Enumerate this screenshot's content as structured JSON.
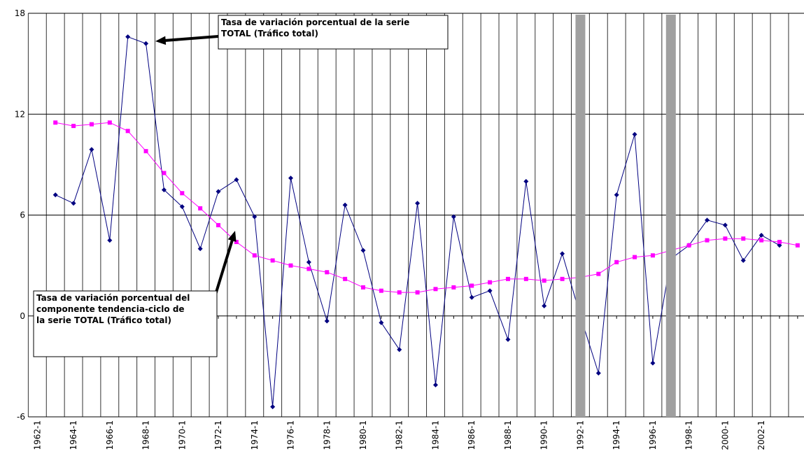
{
  "chart_data": {
    "type": "line",
    "categories": [
      "1962-1",
      null,
      "1964-1",
      null,
      "1966-1",
      null,
      "1968-1",
      null,
      "1970-1",
      null,
      "1972-1",
      null,
      "1974-1",
      null,
      "1976-1",
      null,
      "1978-1",
      null,
      "1980-1",
      null,
      "1982-1",
      null,
      "1984-1",
      null,
      "1986-1",
      null,
      "1988-1",
      null,
      "1990-1",
      null,
      "1992-1",
      null,
      "1994-1",
      null,
      "1996-1",
      null,
      "1998-1",
      null,
      "2000-1",
      null,
      "2002-1",
      null,
      null
    ],
    "series": [
      {
        "color": "#000080",
        "marker": "diamond",
        "values": [
          null,
          7.2,
          6.7,
          9.9,
          4.5,
          16.6,
          16.2,
          7.5,
          6.5,
          4.0,
          7.4,
          8.1,
          5.9,
          -5.4,
          8.2,
          3.2,
          -0.3,
          6.6,
          3.9,
          -0.4,
          -2.0,
          6.7,
          -4.1,
          5.9,
          1.1,
          1.5,
          -1.4,
          8.0,
          0.6,
          3.7,
          0.0,
          -3.4,
          7.2,
          10.8,
          -2.8,
          3.4,
          4.2,
          5.7,
          5.4,
          3.3,
          4.8,
          4.2,
          null
        ]
      },
      {
        "color": "#ff00ff",
        "marker": "square",
        "values": [
          null,
          11.5,
          11.3,
          11.4,
          11.5,
          11.0,
          9.8,
          8.5,
          7.3,
          6.4,
          5.4,
          4.4,
          3.6,
          3.3,
          3.0,
          2.8,
          2.6,
          2.2,
          1.7,
          1.5,
          1.4,
          1.4,
          1.6,
          1.7,
          1.8,
          2.0,
          2.2,
          2.2,
          2.1,
          2.2,
          2.3,
          2.5,
          3.2,
          3.5,
          3.6,
          3.9,
          4.2,
          4.5,
          4.6,
          4.6,
          4.5,
          4.4,
          4.2
        ]
      }
    ],
    "ylim": [
      -6,
      18
    ],
    "yticks": [
      -6,
      0,
      6,
      12,
      18
    ],
    "grid": true,
    "annotations": [
      {
        "lines": [
          "Tasa de variación porcentual de la serie",
          "TOTAL (Tráfico total)"
        ]
      },
      {
        "lines": [
          "Tasa de variación porcentual del",
          "componente tendencia-ciclo de",
          "la serie TOTAL (Tráfico total)"
        ]
      }
    ]
  }
}
